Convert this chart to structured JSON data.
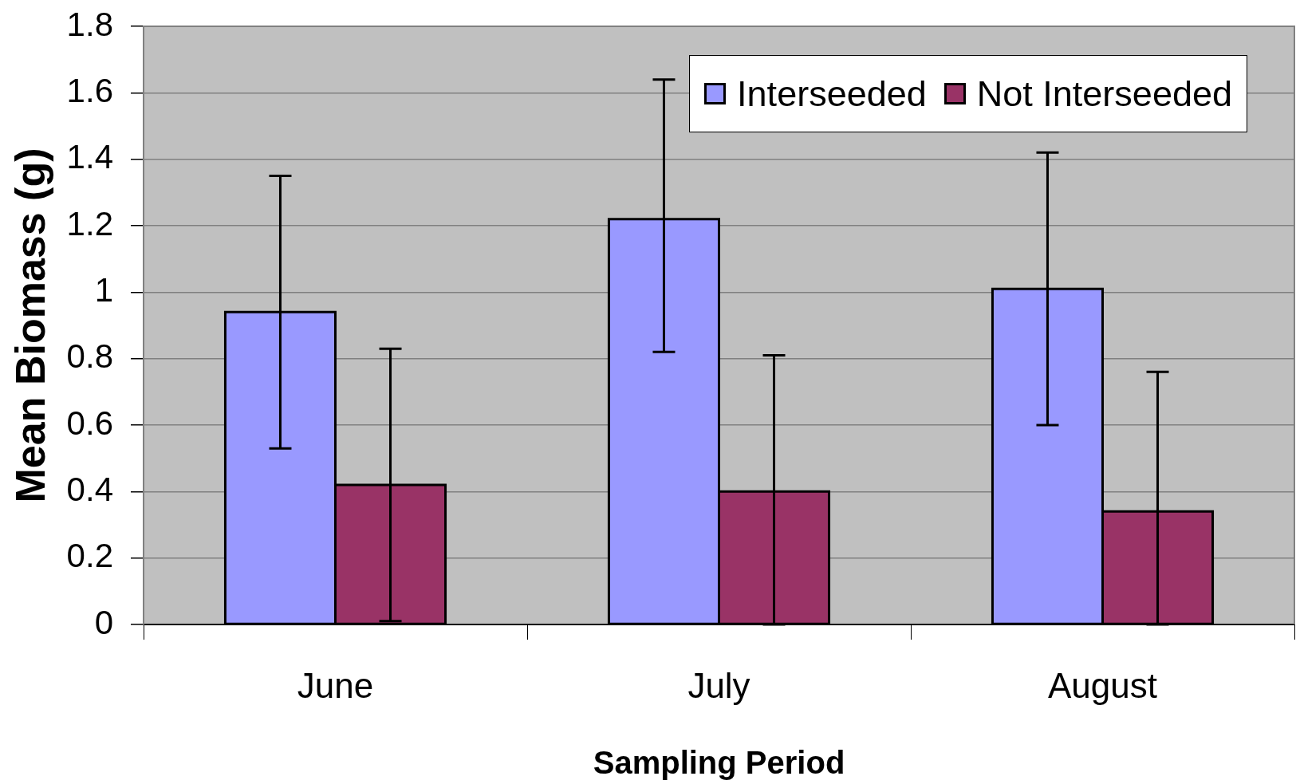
{
  "chart_data": {
    "type": "bar",
    "xlabel": "Sampling Period",
    "ylabel": "Mean Biomass (g)",
    "categories": [
      "June",
      "July",
      "August"
    ],
    "series": [
      {
        "name": "Interseeded",
        "color": "#9999ff",
        "values": [
          0.94,
          1.22,
          1.01
        ],
        "errors": [
          0.41,
          [
            0.82,
            1.64
          ],
          0.41
        ]
      },
      {
        "name": "Not Interseeded",
        "color": "#993366",
        "values": [
          0.42,
          0.4,
          0.34
        ],
        "errors": [
          0.41,
          [
            0,
            0.81
          ],
          [
            0,
            0.76
          ]
        ]
      }
    ],
    "ylim": [
      0,
      1.8
    ],
    "yticks": [
      0,
      0.2,
      0.4,
      0.6,
      0.8,
      1,
      1.2,
      1.4,
      1.6,
      1.8
    ],
    "grid": "y",
    "legend": "top right"
  }
}
